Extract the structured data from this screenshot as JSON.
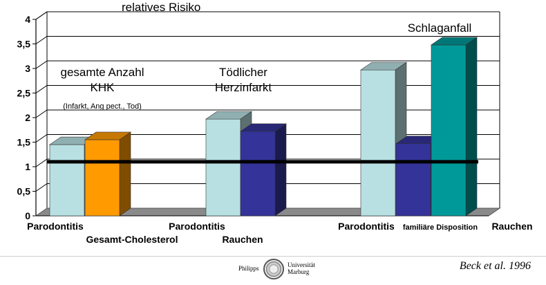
{
  "chart_data": {
    "type": "bar",
    "title": "relatives Risiko",
    "ylim": [
      0,
      4
    ],
    "yticks": [
      "0",
      "0,5",
      "1",
      "1,5",
      "2",
      "2,5",
      "3",
      "3,5",
      "4"
    ],
    "grid": true,
    "reference_line": 1.1,
    "groups": [
      {
        "annotation": [
          "gesamte Anzahl",
          "KHK"
        ],
        "note": "(Infarkt, Ang pect., Tod)",
        "bars": [
          {
            "label": "Parodontitis",
            "value": 1.45,
            "color": "#b8e0e2"
          },
          {
            "label": "Gesamt-Cholesterol",
            "value": 1.55,
            "color": "#ff9a00"
          }
        ]
      },
      {
        "annotation": [
          "Tödlicher",
          "Herzinfarkt"
        ],
        "bars": [
          {
            "label": "Parodontitis",
            "value": 1.97,
            "color": "#b8e0e2"
          },
          {
            "label": "Rauchen",
            "value": 1.72,
            "color": "#333399"
          }
        ]
      },
      {
        "annotation": [
          "Schlaganfall"
        ],
        "bars": [
          {
            "label": "Parodontitis",
            "value": 2.97,
            "color": "#b8e0e2"
          },
          {
            "label": "familiäre Disposition",
            "value": 1.47,
            "color": "#333399"
          },
          {
            "label": "Rauchen",
            "value": 3.48,
            "color": "#009999"
          }
        ]
      }
    ]
  },
  "footer": {
    "logo_left": "Philipps",
    "logo_right_1": "Universität",
    "logo_right_2": "Marburg",
    "citation": "Beck et al. 1996"
  }
}
